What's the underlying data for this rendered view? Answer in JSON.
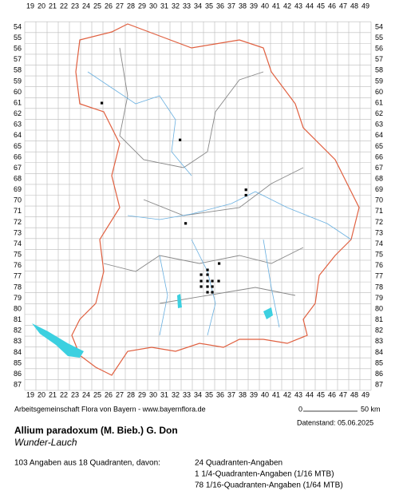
{
  "map": {
    "columns": [
      19,
      20,
      21,
      22,
      23,
      24,
      25,
      26,
      27,
      28,
      29,
      30,
      31,
      32,
      33,
      34,
      35,
      36,
      37,
      38,
      39,
      40,
      41,
      42,
      43,
      44,
      45,
      46,
      47,
      48,
      49
    ],
    "rows": [
      54,
      55,
      56,
      57,
      58,
      59,
      60,
      61,
      62,
      63,
      64,
      65,
      66,
      67,
      68,
      69,
      70,
      71,
      72,
      73,
      74,
      75,
      76,
      77,
      78,
      79,
      80,
      81,
      82,
      83,
      84,
      85,
      86,
      87
    ],
    "points": {
      "x": [
        25.4,
        32.4,
        38.3,
        38.3,
        32.9,
        35.9,
        34.86,
        34.29,
        34.86,
        34.29,
        34.86,
        35.29,
        35.86,
        34.29,
        34.86,
        35.29,
        34.86,
        35.29
      ],
      "y": [
        61.0,
        64.4,
        69.0,
        69.5,
        72.1,
        75.8,
        76.39,
        76.83,
        76.83,
        77.42,
        77.42,
        77.42,
        77.42,
        77.93,
        77.93,
        77.93,
        78.45,
        78.45
      ]
    }
  },
  "footer": {
    "credit": "Arbeitsgemeinschaft Flora von Bayern - www.bayernflora.de",
    "scale_start": "0",
    "scale_end": "50 km",
    "date": "Datenstand: 05.06.2025"
  },
  "species": {
    "name": "Allium paradoxum (M. Bieb.) G. Don",
    "common_name": "Wunder-Lauch"
  },
  "stats": {
    "summary": "103 Angaben aus 18 Quadranten, davon:",
    "lines": [
      "24 Quadranten-Angaben",
      "1 1/4-Quadranten-Angaben (1/16 MTB)",
      "78 1/16-Quadranten-Angaben (1/64 MTB)"
    ]
  }
}
